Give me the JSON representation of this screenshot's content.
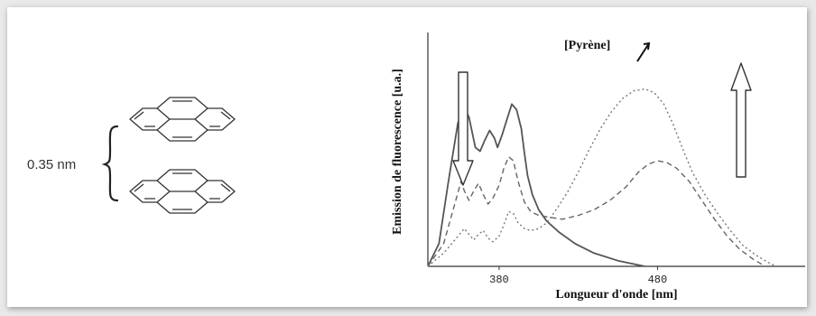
{
  "structure": {
    "separation_label": "0.35 nm"
  },
  "chart_data": {
    "type": "line",
    "title": "",
    "xlabel": "Longueur d'onde [nm]",
    "ylabel": "Emission de fluorescence [u.a.]",
    "annotation": "[Pyrène]",
    "xticks": [
      380,
      480
    ],
    "xlim": [
      335,
      555
    ],
    "ylim": [
      0,
      1
    ],
    "series": [
      {
        "style": "solid",
        "color": "#555555",
        "x": [
          335,
          342,
          348,
          354,
          358,
          361,
          365,
          368,
          371,
          374,
          377,
          379,
          382,
          385,
          388,
          391,
          394,
          396,
          398,
          401,
          405,
          410,
          418,
          428,
          440,
          455,
          472
        ],
        "y": [
          0.0,
          0.12,
          0.45,
          0.76,
          0.84,
          0.79,
          0.63,
          0.61,
          0.67,
          0.72,
          0.68,
          0.63,
          0.7,
          0.78,
          0.86,
          0.83,
          0.73,
          0.6,
          0.48,
          0.38,
          0.3,
          0.24,
          0.18,
          0.12,
          0.07,
          0.03,
          0.0
        ]
      },
      {
        "style": "short-dash",
        "color": "#666666",
        "x": [
          335,
          345,
          352,
          356,
          358,
          361,
          364,
          367,
          370,
          373,
          376,
          380,
          383,
          386,
          389,
          392,
          396,
          400,
          405,
          412,
          420,
          430,
          440,
          450,
          460,
          468,
          474,
          480,
          486,
          492,
          500,
          508,
          516,
          524,
          532,
          540,
          548
        ],
        "y": [
          0.0,
          0.12,
          0.33,
          0.45,
          0.4,
          0.35,
          0.4,
          0.44,
          0.38,
          0.33,
          0.36,
          0.43,
          0.52,
          0.58,
          0.56,
          0.45,
          0.34,
          0.29,
          0.27,
          0.26,
          0.25,
          0.27,
          0.3,
          0.35,
          0.42,
          0.5,
          0.54,
          0.56,
          0.55,
          0.52,
          0.45,
          0.35,
          0.25,
          0.16,
          0.09,
          0.04,
          0.0
        ]
      },
      {
        "style": "dotted",
        "color": "#777777",
        "x": [
          335,
          345,
          353,
          358,
          361,
          364,
          367,
          370,
          373,
          376,
          380,
          383,
          386,
          389,
          392,
          396,
          400,
          405,
          410,
          416,
          423,
          430,
          437,
          444,
          451,
          458,
          465,
          472,
          478,
          484,
          490,
          496,
          502,
          510,
          518,
          526,
          534,
          542,
          550,
          555
        ],
        "y": [
          0.0,
          0.07,
          0.15,
          0.2,
          0.17,
          0.14,
          0.17,
          0.19,
          0.15,
          0.13,
          0.16,
          0.22,
          0.29,
          0.28,
          0.23,
          0.2,
          0.19,
          0.2,
          0.23,
          0.3,
          0.39,
          0.5,
          0.62,
          0.73,
          0.82,
          0.89,
          0.93,
          0.94,
          0.92,
          0.86,
          0.75,
          0.62,
          0.5,
          0.38,
          0.28,
          0.19,
          0.11,
          0.06,
          0.02,
          0.0
        ]
      }
    ]
  }
}
